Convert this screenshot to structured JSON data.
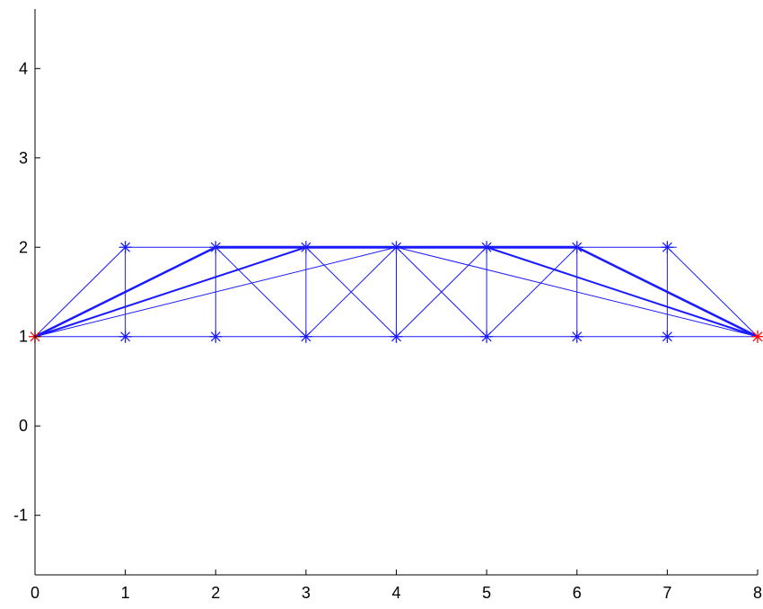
{
  "chart_data": {
    "type": "line",
    "title": "",
    "xlabel": "",
    "ylabel": "",
    "xlim": [
      0,
      8
    ],
    "ylim": [
      -1.6666,
      4.6666
    ],
    "grid": false,
    "legend": "none",
    "x_ticks": [
      0,
      1,
      2,
      3,
      4,
      5,
      6,
      7,
      8
    ],
    "y_ticks": [
      -1,
      0,
      1,
      2,
      3,
      4
    ],
    "colors": {
      "members": "#1a1aff",
      "nodes": "#1a1aff",
      "supports": "#ff0000"
    },
    "nodes": [
      {
        "x": 0,
        "y": 1,
        "kind": "support"
      },
      {
        "x": 8,
        "y": 1,
        "kind": "support"
      },
      {
        "x": 1,
        "y": 1,
        "kind": "free"
      },
      {
        "x": 2,
        "y": 1,
        "kind": "free"
      },
      {
        "x": 3,
        "y": 1,
        "kind": "free"
      },
      {
        "x": 4,
        "y": 1,
        "kind": "free"
      },
      {
        "x": 5,
        "y": 1,
        "kind": "free"
      },
      {
        "x": 6,
        "y": 1,
        "kind": "free"
      },
      {
        "x": 7,
        "y": 1,
        "kind": "free"
      },
      {
        "x": 1,
        "y": 2,
        "kind": "free"
      },
      {
        "x": 2,
        "y": 2,
        "kind": "free"
      },
      {
        "x": 3,
        "y": 2,
        "kind": "free"
      },
      {
        "x": 4,
        "y": 2,
        "kind": "free"
      },
      {
        "x": 5,
        "y": 2,
        "kind": "free"
      },
      {
        "x": 6,
        "y": 2,
        "kind": "free"
      },
      {
        "x": 7,
        "y": 2,
        "kind": "free"
      }
    ],
    "members": [
      {
        "x1": 0,
        "y1": 1,
        "x2": 8,
        "y2": 1,
        "width": 1
      },
      {
        "x1": 1,
        "y1": 2,
        "x2": 7.1,
        "y2": 2,
        "width": 1
      },
      {
        "x1": 1,
        "y1": 1,
        "x2": 1,
        "y2": 2,
        "width": 1
      },
      {
        "x1": 2,
        "y1": 1,
        "x2": 2,
        "y2": 2,
        "width": 1
      },
      {
        "x1": 3,
        "y1": 1,
        "x2": 3,
        "y2": 2,
        "width": 1
      },
      {
        "x1": 4,
        "y1": 1,
        "x2": 4,
        "y2": 2,
        "width": 1
      },
      {
        "x1": 5,
        "y1": 1,
        "x2": 5,
        "y2": 2,
        "width": 1
      },
      {
        "x1": 6,
        "y1": 1,
        "x2": 6,
        "y2": 2,
        "width": 1
      },
      {
        "x1": 7,
        "y1": 1,
        "x2": 7,
        "y2": 2,
        "width": 1
      },
      {
        "x1": 0,
        "y1": 1,
        "x2": 1,
        "y2": 2,
        "width": 1
      },
      {
        "x1": 0,
        "y1": 1,
        "x2": 2,
        "y2": 2,
        "width": 2.5
      },
      {
        "x1": 0,
        "y1": 1,
        "x2": 3,
        "y2": 2,
        "width": 2
      },
      {
        "x1": 0,
        "y1": 1,
        "x2": 4,
        "y2": 2,
        "width": 1
      },
      {
        "x1": 2,
        "y1": 2,
        "x2": 3,
        "y2": 1,
        "width": 1
      },
      {
        "x1": 3,
        "y1": 1,
        "x2": 4,
        "y2": 2,
        "width": 1
      },
      {
        "x1": 3,
        "y1": 2,
        "x2": 4,
        "y2": 1,
        "width": 1
      },
      {
        "x1": 4,
        "y1": 1,
        "x2": 5,
        "y2": 2,
        "width": 1
      },
      {
        "x1": 4,
        "y1": 2,
        "x2": 5,
        "y2": 1,
        "width": 1
      },
      {
        "x1": 5,
        "y1": 1,
        "x2": 6,
        "y2": 2,
        "width": 1
      },
      {
        "x1": 8,
        "y1": 1,
        "x2": 7,
        "y2": 2,
        "width": 1
      },
      {
        "x1": 8,
        "y1": 1,
        "x2": 6,
        "y2": 2,
        "width": 2.5
      },
      {
        "x1": 8,
        "y1": 1,
        "x2": 5,
        "y2": 2,
        "width": 2
      },
      {
        "x1": 8,
        "y1": 1,
        "x2": 4,
        "y2": 2,
        "width": 1
      },
      {
        "x1": 2,
        "y1": 2,
        "x2": 6,
        "y2": 2,
        "width": 3
      }
    ]
  }
}
